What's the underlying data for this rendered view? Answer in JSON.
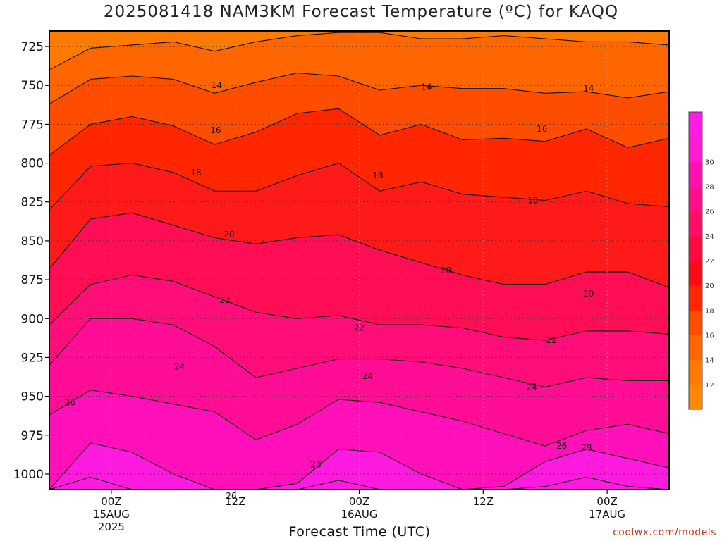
{
  "title": "2025081418 NAM3KM Forecast Temperature (ºC) for KAQQ",
  "xlabel": "Forecast Time (UTC)",
  "credit": "coolwx.com/models",
  "chart_data": {
    "type": "heatmap",
    "title": "2025081418 NAM3KM Forecast Temperature (ºC) for KAQQ",
    "xlabel": "Forecast Time (UTC)",
    "ylabel": "",
    "y_axis_ticks": [
      "725",
      "750",
      "775",
      "800",
      "825",
      "850",
      "875",
      "900",
      "925",
      "950",
      "975",
      "1000"
    ],
    "y_values_hpa": [
      725,
      750,
      775,
      800,
      825,
      850,
      875,
      900,
      925,
      950,
      975,
      1000
    ],
    "x_ticks": [
      {
        "label": "00Z",
        "sub1": "15AUG",
        "sub2": "2025",
        "hour": 6
      },
      {
        "label": "12Z",
        "sub1": "",
        "sub2": "",
        "hour": 18
      },
      {
        "label": "00Z",
        "sub1": "16AUG",
        "sub2": "",
        "hour": 30
      },
      {
        "label": "12Z",
        "sub1": "",
        "sub2": "",
        "hour": 42
      },
      {
        "label": "00Z",
        "sub1": "17AUG",
        "sub2": "",
        "hour": 54
      }
    ],
    "x_range_hours": [
      0,
      60
    ],
    "y_range_hpa": [
      715,
      1010
    ],
    "contour_interval": 2,
    "contour_labels": [
      {
        "text": "14",
        "hour": 16.2,
        "hpa": 750
      },
      {
        "text": "14",
        "hour": 36.5,
        "hpa": 751
      },
      {
        "text": "14",
        "hour": 52.2,
        "hpa": 752
      },
      {
        "text": "16",
        "hour": 16.1,
        "hpa": 779
      },
      {
        "text": "16",
        "hour": 47.7,
        "hpa": 778
      },
      {
        "text": "18",
        "hour": 14.2,
        "hpa": 806
      },
      {
        "text": "18",
        "hour": 31.8,
        "hpa": 808
      },
      {
        "text": "18",
        "hour": 46.8,
        "hpa": 824
      },
      {
        "text": "20",
        "hour": 17.4,
        "hpa": 846
      },
      {
        "text": "20",
        "hour": 38.4,
        "hpa": 869
      },
      {
        "text": "20",
        "hour": 52.2,
        "hpa": 884
      },
      {
        "text": "22",
        "hour": 17.0,
        "hpa": 888
      },
      {
        "text": "22",
        "hour": 30.0,
        "hpa": 906
      },
      {
        "text": "22",
        "hour": 48.6,
        "hpa": 914
      },
      {
        "text": "24",
        "hour": 12.6,
        "hpa": 931
      },
      {
        "text": "24",
        "hour": 30.8,
        "hpa": 937
      },
      {
        "text": "24",
        "hour": 46.7,
        "hpa": 944
      },
      {
        "text": "26",
        "hour": 2.0,
        "hpa": 954
      },
      {
        "text": "26",
        "hour": 49.6,
        "hpa": 982
      },
      {
        "text": "26",
        "hour": 17.6,
        "hpa": 1014
      },
      {
        "text": "28",
        "hour": 25.8,
        "hpa": 994
      },
      {
        "text": "28",
        "hour": 52.0,
        "hpa": 983
      }
    ],
    "colorbar": {
      "ticks": [
        "12",
        "14",
        "16",
        "18",
        "20",
        "22",
        "24",
        "26",
        "28",
        "30"
      ],
      "colors": [
        "#ff8800",
        "#ff7a00",
        "#ff6600",
        "#ff4d00",
        "#ff2600",
        "#ff0a14",
        "#ff0a40",
        "#ff0d66",
        "#ff0d8a",
        "#ff10b3",
        "#ff1ad6",
        "#ff1ae6"
      ]
    },
    "terrain_color": "#a0522d",
    "grid": true
  }
}
